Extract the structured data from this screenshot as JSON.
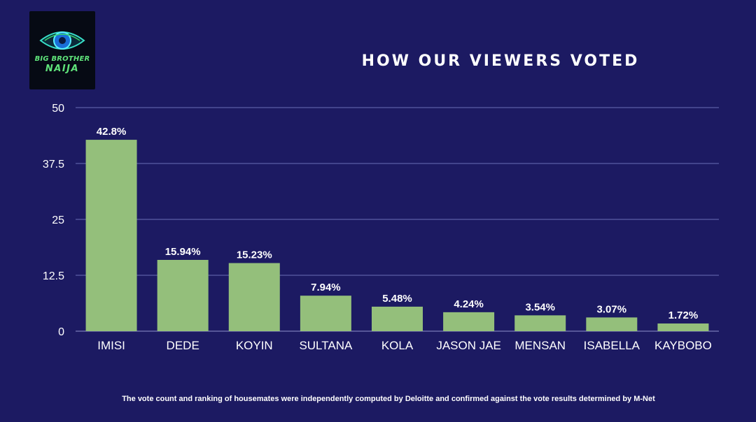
{
  "logo": {
    "line1": "BIG BROTHER",
    "line2": "NAIJA"
  },
  "title": "HOW OUR VIEWERS VOTED",
  "footnote": "The vote count and ranking of housemates were independently computed by Deloitte and confirmed against the vote results determined by M-Net",
  "colors": {
    "background": "#1c1a62",
    "bar": "#94bf7b",
    "grid": "#6a6fb5",
    "text": "#ffffff"
  },
  "chart_data": {
    "type": "bar",
    "categories": [
      "IMISI",
      "DEDE",
      "KOYIN",
      "SULTANA",
      "KOLA",
      "JASON JAE",
      "MENSAN",
      "ISABELLA",
      "KAYBOBO"
    ],
    "values": [
      42.8,
      15.94,
      15.23,
      7.94,
      5.48,
      4.24,
      3.54,
      3.07,
      1.72
    ],
    "value_labels": [
      "42.8%",
      "15.94%",
      "15.23%",
      "7.94%",
      "5.48%",
      "4.24%",
      "3.54%",
      "3.07%",
      "1.72%"
    ],
    "ylim": [
      0,
      50
    ],
    "yticks": [
      0,
      12.5,
      25,
      37.5,
      50
    ],
    "ytick_labels": [
      "0",
      "12.5",
      "25",
      "37.5",
      "50"
    ],
    "grid": true,
    "legend": "none"
  }
}
